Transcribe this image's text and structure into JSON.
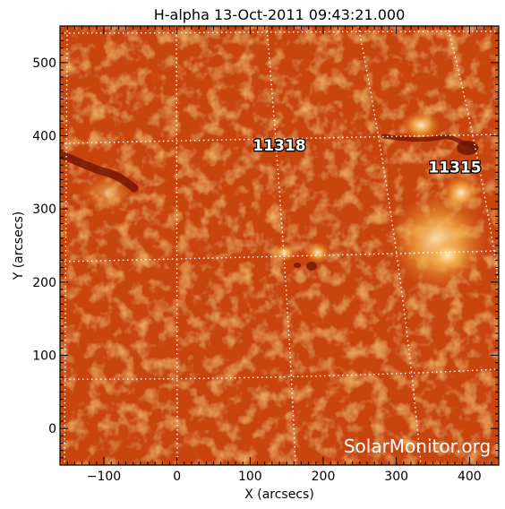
{
  "title": "H-alpha 13-Oct-2011 09:43:21.000",
  "xlabel": "X (arcsecs)",
  "ylabel": "Y (arcsecs)",
  "x_ticks": [
    -100,
    0,
    100,
    200,
    300,
    400
  ],
  "y_ticks": [
    0,
    100,
    200,
    300,
    400,
    500
  ],
  "x_range": [
    -160,
    440
  ],
  "y_range": [
    -50,
    550
  ],
  "regions": [
    {
      "label": "11318",
      "x": 140,
      "y": 380
    },
    {
      "label": "11315",
      "x": 380,
      "y": 350
    }
  ],
  "watermark": "SolarMonitor.org",
  "colors": {
    "image_base": "#c84410",
    "image_dark": "#8a2206",
    "image_bright": "#f3a63c",
    "frame": "#000000",
    "grid": "#ffffff"
  }
}
